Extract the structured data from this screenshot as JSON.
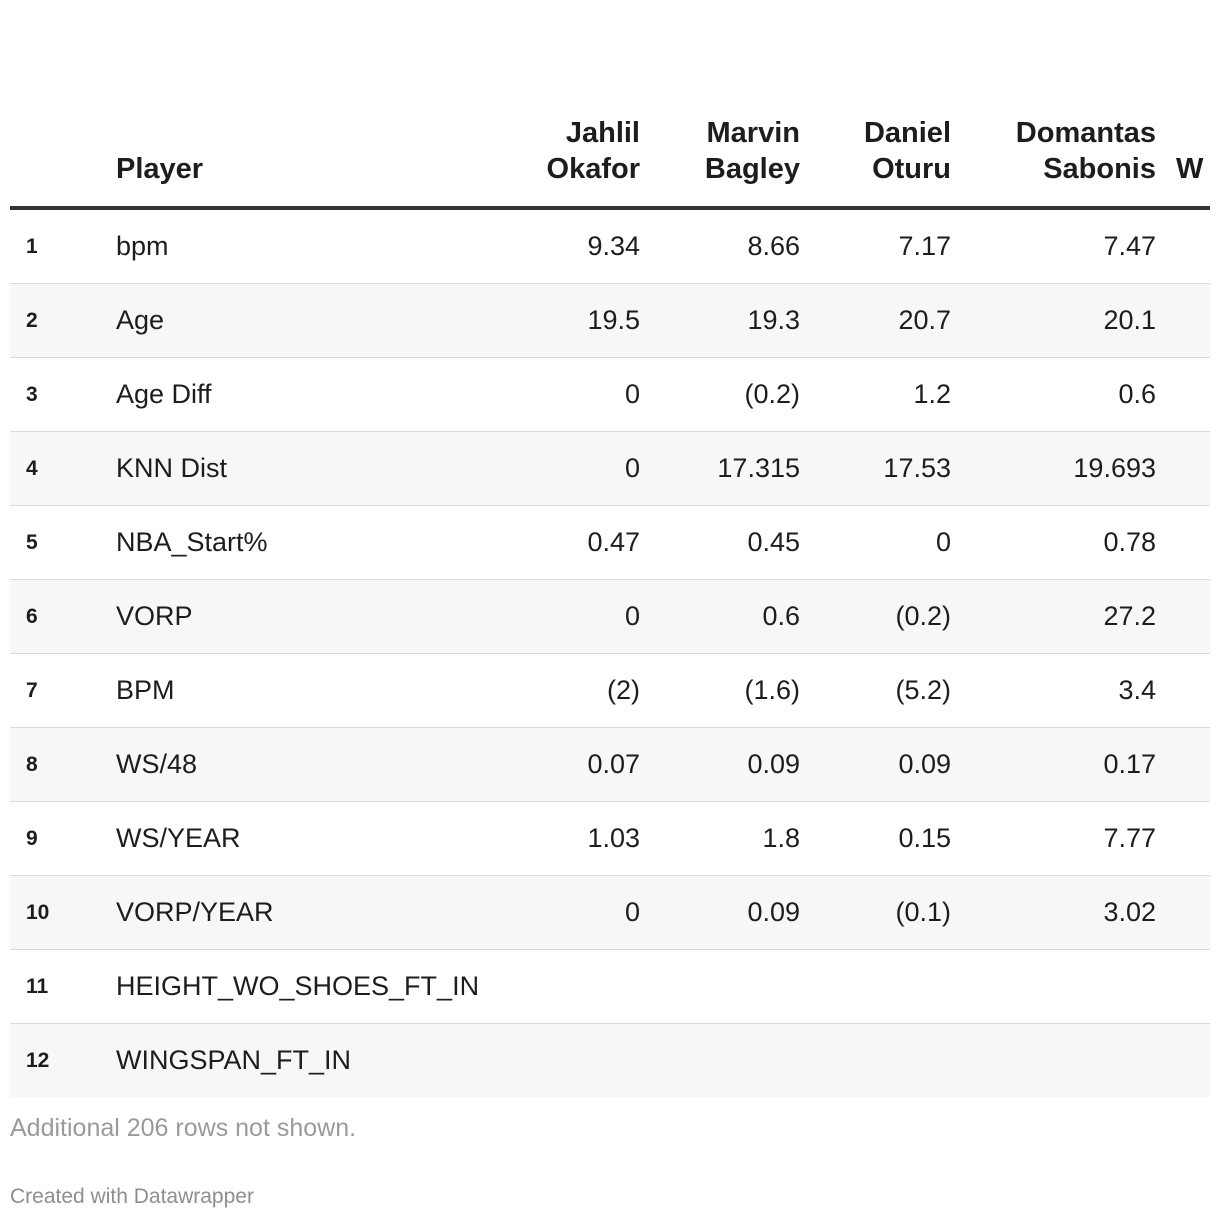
{
  "chart_data": {
    "type": "table",
    "corner_header": "Player",
    "columns": [
      {
        "line1": "Jahlil",
        "line2": "Okafor"
      },
      {
        "line1": "Marvin",
        "line2": "Bagley"
      },
      {
        "line1": "Daniel",
        "line2": "Oturu"
      },
      {
        "line1": "Domantas",
        "line2": "Sabonis"
      },
      {
        "line1": "W",
        "line2": ""
      }
    ],
    "rows": [
      {
        "num": "1",
        "label": "bpm",
        "values": [
          "9.34",
          "8.66",
          "7.17",
          "7.47",
          ""
        ]
      },
      {
        "num": "2",
        "label": "Age",
        "values": [
          "19.5",
          "19.3",
          "20.7",
          "20.1",
          ""
        ]
      },
      {
        "num": "3",
        "label": "Age Diff",
        "values": [
          "0",
          "(0.2)",
          "1.2",
          "0.6",
          ""
        ]
      },
      {
        "num": "4",
        "label": "KNN Dist",
        "values": [
          "0",
          "17.315",
          "17.53",
          "19.693",
          ""
        ]
      },
      {
        "num": "5",
        "label": "NBA_Start%",
        "values": [
          "0.47",
          "0.45",
          "0",
          "0.78",
          ""
        ]
      },
      {
        "num": "6",
        "label": "VORP",
        "values": [
          "0",
          "0.6",
          "(0.2)",
          "27.2",
          ""
        ]
      },
      {
        "num": "7",
        "label": "BPM",
        "values": [
          "(2)",
          "(1.6)",
          "(5.2)",
          "3.4",
          ""
        ]
      },
      {
        "num": "8",
        "label": "WS/48",
        "values": [
          "0.07",
          "0.09",
          "0.09",
          "0.17",
          ""
        ]
      },
      {
        "num": "9",
        "label": "WS/YEAR",
        "values": [
          "1.03",
          "1.8",
          "0.15",
          "7.77",
          ""
        ]
      },
      {
        "num": "10",
        "label": "VORP/YEAR",
        "values": [
          "0",
          "0.09",
          "(0.1)",
          "3.02",
          ""
        ]
      },
      {
        "num": "11",
        "label": "HEIGHT_WO_SHOES_FT_IN",
        "values": [
          "",
          "",
          "",
          "",
          ""
        ]
      },
      {
        "num": "12",
        "label": "WINGSPAN_FT_IN",
        "values": [
          "",
          "",
          "",
          "",
          ""
        ]
      }
    ]
  },
  "footer": {
    "note": "Additional 206 rows not shown.",
    "credit": "Created with Datawrapper"
  }
}
